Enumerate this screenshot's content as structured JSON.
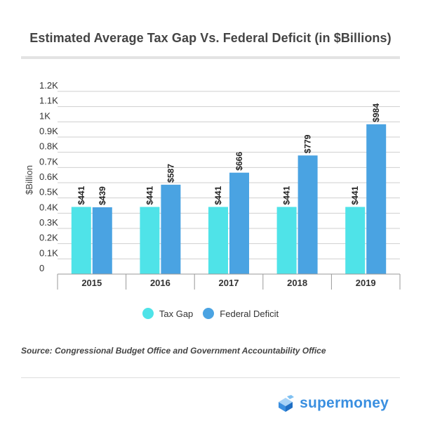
{
  "chart_data": {
    "type": "bar",
    "title": "Estimated Average Tax Gap Vs. Federal Deficit (in $Billions)",
    "ylabel": "$Billion",
    "xlabel": "",
    "categories": [
      "2015",
      "2016",
      "2017",
      "2018",
      "2019"
    ],
    "series": [
      {
        "name": "Tax Gap",
        "color": "#4fe3e8",
        "values": [
          441,
          441,
          441,
          441,
          441
        ],
        "labels": [
          "$441",
          "$441",
          "$441",
          "$441",
          "$441"
        ]
      },
      {
        "name": "Federal Deficit",
        "color": "#4aa3e2",
        "values": [
          439,
          587,
          666,
          779,
          984
        ],
        "labels": [
          "$439",
          "$587",
          "$666",
          "$779",
          "$984"
        ]
      }
    ],
    "yticks": [
      {
        "value": 0,
        "label": "0"
      },
      {
        "value": 100,
        "label": "0.1K"
      },
      {
        "value": 200,
        "label": "0.2K"
      },
      {
        "value": 300,
        "label": "0.3K"
      },
      {
        "value": 400,
        "label": "0.4K"
      },
      {
        "value": 500,
        "label": "0.5K"
      },
      {
        "value": 600,
        "label": "0.6K"
      },
      {
        "value": 700,
        "label": "0.7K"
      },
      {
        "value": 800,
        "label": "0.8K"
      },
      {
        "value": 900,
        "label": "0.9K"
      },
      {
        "value": 1000,
        "label": "1K"
      },
      {
        "value": 1100,
        "label": "1.1K"
      },
      {
        "value": 1200,
        "label": "1.2K"
      }
    ],
    "ylim": [
      0,
      1200
    ],
    "grid": true,
    "legend_position": "bottom-center"
  },
  "source": "Source: Congressional Budget Office and Government Accountability Office",
  "brand": {
    "name": "supermoney",
    "color": "#3a8fe0",
    "logo_icon": "cube-logo-icon"
  }
}
